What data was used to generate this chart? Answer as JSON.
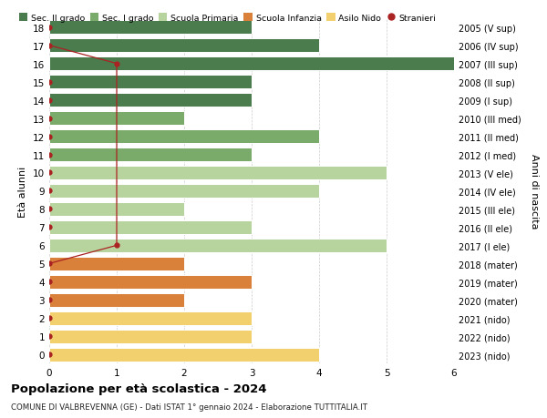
{
  "ages": [
    18,
    17,
    16,
    15,
    14,
    13,
    12,
    11,
    10,
    9,
    8,
    7,
    6,
    5,
    4,
    3,
    2,
    1,
    0
  ],
  "years": [
    "2005 (V sup)",
    "2006 (IV sup)",
    "2007 (III sup)",
    "2008 (II sup)",
    "2009 (I sup)",
    "2010 (III med)",
    "2011 (II med)",
    "2012 (I med)",
    "2013 (V ele)",
    "2014 (IV ele)",
    "2015 (III ele)",
    "2016 (II ele)",
    "2017 (I ele)",
    "2018 (mater)",
    "2019 (mater)",
    "2020 (mater)",
    "2021 (nido)",
    "2022 (nido)",
    "2023 (nido)"
  ],
  "values": [
    3,
    4,
    6,
    3,
    3,
    2,
    4,
    3,
    5,
    4,
    2,
    3,
    5,
    2,
    3,
    2,
    3,
    3,
    4
  ],
  "bar_colors": [
    "#4a7c4e",
    "#4a7c4e",
    "#4a7c4e",
    "#4a7c4e",
    "#4a7c4e",
    "#7aab6a",
    "#7aab6a",
    "#7aab6a",
    "#b8d49e",
    "#b8d49e",
    "#b8d49e",
    "#b8d49e",
    "#b8d49e",
    "#d9813a",
    "#d9813a",
    "#d9813a",
    "#f2d06e",
    "#f2d06e",
    "#f2d06e"
  ],
  "title": "Popolazione per età scolastica - 2024",
  "subtitle": "COMUNE DI VALBREVENNA (GE) - Dati ISTAT 1° gennaio 2024 - Elaborazione TUTTITALIA.IT",
  "ylabel_left": "Età alunni",
  "ylabel_right": "Anni di nascita",
  "legend_labels": [
    "Sec. II grado",
    "Sec. I grado",
    "Scuola Primaria",
    "Scuola Infanzia",
    "Asilo Nido",
    "Stranieri"
  ],
  "legend_colors": [
    "#4a7c4e",
    "#7aab6a",
    "#b8d49e",
    "#d9813a",
    "#f2d06e",
    "#cc2222"
  ],
  "color_stranieri": "#aa2222",
  "xlim": [
    0,
    6
  ],
  "bg_color": "#ffffff",
  "bar_height": 0.75,
  "stranieri_line_x": [
    0,
    1,
    1,
    0
  ],
  "stranieri_line_y": [
    17,
    16,
    6,
    5
  ],
  "stranieri_dots_age": [
    18,
    17,
    16,
    15,
    14,
    13,
    12,
    11,
    10,
    9,
    8,
    7,
    6,
    5,
    4,
    3,
    2,
    1,
    0
  ],
  "stranieri_dots_x": [
    0,
    0,
    1,
    0,
    0,
    0,
    0,
    0,
    0,
    0,
    0,
    0,
    1,
    0,
    0,
    0,
    0,
    0,
    0
  ]
}
